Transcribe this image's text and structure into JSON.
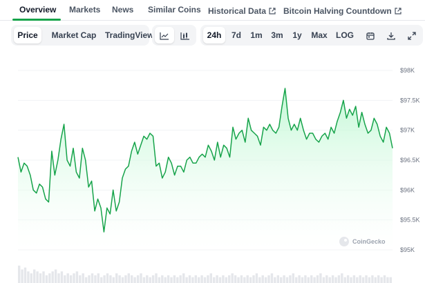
{
  "nav": {
    "tabs": [
      {
        "label": "Overview",
        "active": true
      },
      {
        "label": "Markets"
      },
      {
        "label": "News"
      },
      {
        "label": "Similar Coins"
      },
      {
        "label": "Historical Data",
        "external": true
      },
      {
        "label": "Bitcoin Halving Countdown",
        "external": true
      }
    ]
  },
  "toolbar": {
    "type_buttons": [
      "Price",
      "Market Cap",
      "TradingView"
    ],
    "active_type": "Price",
    "chart_style_icons": [
      "line-chart-icon",
      "candlestick-icon"
    ],
    "ranges": [
      "24h",
      "7d",
      "1m",
      "3m",
      "1y",
      "Max",
      "LOG"
    ],
    "active_range": "24h",
    "action_icons": [
      "calendar-icon",
      "download-icon",
      "expand-icon"
    ]
  },
  "watermark": "CoinGecko",
  "colors": {
    "line": "#16a34a",
    "fill_top": "#bbf7d0",
    "fill_bottom": "#ffffff",
    "active_tab_underline": "#16a34a",
    "volume": "#e5e7eb"
  },
  "chart_data": {
    "type": "area",
    "title": "",
    "xlabel": "",
    "ylabel": "",
    "ylim": [
      95000,
      98000
    ],
    "yticks": [
      "$98K",
      "$97.5K",
      "$97K",
      "$96.5K",
      "$96K",
      "$95.5K",
      "$95K"
    ],
    "ytick_values": [
      98000,
      97500,
      97000,
      96500,
      96000,
      95500,
      95000
    ],
    "grid": true,
    "series": [
      {
        "values": [
          96550,
          96300,
          96450,
          96400,
          96250,
          96000,
          95950,
          96100,
          96050,
          95850,
          95800,
          96650,
          96250,
          96500,
          96850,
          97100,
          96500,
          96400,
          96700,
          96300,
          96200,
          96700,
          96500,
          96050,
          96150,
          95650,
          95850,
          95700,
          95300,
          95700,
          95600,
          96000,
          95650,
          95800,
          96200,
          96350,
          96400,
          96650,
          96800,
          96600,
          96750,
          96900,
          96850,
          96950,
          96900,
          96400,
          96450,
          96200,
          96300,
          96550,
          96450,
          96250,
          96400,
          96400,
          96300,
          96500,
          96550,
          96450,
          96450,
          96550,
          96600,
          96550,
          96750,
          96650,
          96500,
          96800,
          96550,
          96750,
          96700,
          96550,
          97050,
          96850,
          96950,
          97000,
          96800,
          97200,
          97000,
          96950,
          96900,
          96750,
          97050,
          97000,
          97100,
          97000,
          96950,
          97050,
          97400,
          97700,
          97200,
          97000,
          97100,
          97000,
          97200,
          97000,
          96850,
          96950,
          96950,
          96850,
          96800,
          96900,
          96950,
          96850,
          97050,
          96950,
          97150,
          97300,
          97500,
          97200,
          97350,
          97250,
          97400,
          97050,
          97300,
          97100,
          96950,
          97000,
          97200,
          97100,
          96900,
          96800,
          97050,
          96950,
          96700
        ]
      }
    ]
  },
  "volume_data": {
    "type": "bar",
    "values": [
      0.9,
      0.7,
      0.8,
      0.6,
      0.5,
      0.7,
      0.6,
      0.5,
      0.6,
      0.4,
      0.5,
      0.6,
      0.7,
      0.5,
      0.6,
      0.4,
      0.5,
      0.4,
      0.5,
      0.6,
      0.4,
      0.5,
      0.3,
      0.4,
      0.5,
      0.4,
      0.5,
      0.3,
      0.4,
      0.5,
      0.4,
      0.3,
      0.5,
      0.4,
      0.3,
      0.4,
      0.5,
      0.4,
      0.3,
      0.4,
      0.5,
      0.3,
      0.4,
      0.3,
      0.4,
      0.5,
      0.3,
      0.4,
      0.3,
      0.4,
      0.3,
      0.4,
      0.3,
      0.4,
      0.5,
      0.3,
      0.4,
      0.3,
      0.4,
      0.3,
      0.4,
      0.3,
      0.4,
      0.5,
      0.3,
      0.4,
      0.3,
      0.4,
      0.3,
      0.4,
      0.5,
      0.4,
      0.3,
      0.4,
      0.3,
      0.4,
      0.3,
      0.4,
      0.5,
      0.3,
      0.4,
      0.3,
      0.4,
      0.5,
      0.3,
      0.4,
      0.3,
      0.4,
      0.3,
      0.4,
      0.5,
      0.3,
      0.4,
      0.3,
      0.4,
      0.3,
      0.4,
      0.3,
      0.4,
      0.5,
      0.3,
      0.4,
      0.3,
      0.4,
      0.3,
      0.4,
      0.5,
      0.3,
      0.4,
      0.3,
      0.4,
      0.3,
      0.4,
      0.3,
      0.4,
      0.3,
      0.4,
      0.3,
      0.4,
      0.3,
      0.4,
      0.3,
      0.3
    ]
  }
}
